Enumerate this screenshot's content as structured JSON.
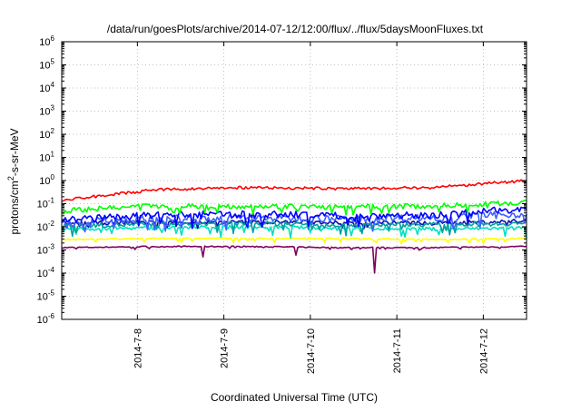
{
  "chart_data": {
    "type": "line",
    "title": "/data/run/goesPlots/archive/2014-07-12/12:00/flux/../flux/5daysMoonFluxes.txt",
    "xlabel": "Coordinated Universal Time (UTC)",
    "ylabel_parts": [
      "protons/cm",
      "2",
      "-s-sr-MeV"
    ],
    "y_scale": "log",
    "ylim_exponents": [
      -6,
      6
    ],
    "y_ticks": [
      {
        "base": "10",
        "exp": "-6"
      },
      {
        "base": "10",
        "exp": "-5"
      },
      {
        "base": "10",
        "exp": "-4"
      },
      {
        "base": "10",
        "exp": "-3"
      },
      {
        "base": "10",
        "exp": "-2"
      },
      {
        "base": "10",
        "exp": "-1"
      },
      {
        "base": "10",
        "exp": "0"
      },
      {
        "base": "10",
        "exp": "1"
      },
      {
        "base": "10",
        "exp": "2"
      },
      {
        "base": "10",
        "exp": "3"
      },
      {
        "base": "10",
        "exp": "4"
      },
      {
        "base": "10",
        "exp": "5"
      },
      {
        "base": "10",
        "exp": "6"
      }
    ],
    "x_domain": [
      "2014-07-07T03:00",
      "2014-07-12T12:00"
    ],
    "x_ticks": [
      {
        "label": "2014-7-8",
        "date": "2014-07-08"
      },
      {
        "label": "2014-7-9",
        "date": "2014-07-09"
      },
      {
        "label": "2014-7-10",
        "date": "2014-07-10"
      },
      {
        "label": "2014-7-11",
        "date": "2014-07-11"
      },
      {
        "label": "2014-7-12",
        "date": "2014-07-12"
      }
    ],
    "grid": true,
    "legend": "none",
    "series": [
      {
        "color": "#ff0000",
        "level": 0.45,
        "jitter": 0.12,
        "spikes": 0.0,
        "trend": [
          -0.85,
          -0.4,
          -0.3,
          -0.35,
          -0.3,
          0.0
        ]
      },
      {
        "color": "#00ff00",
        "level": 0.06,
        "jitter": 0.22,
        "spikes": 0.4,
        "trend": [
          -1.3,
          -1.1,
          -1.1,
          -1.15,
          -1.1,
          -0.95
        ]
      },
      {
        "color": "#0000ff",
        "level": 0.03,
        "jitter": 0.3,
        "spikes": 0.5,
        "trend": [
          -1.7,
          -1.5,
          -1.45,
          -1.5,
          -1.5,
          -1.2
        ]
      },
      {
        "color": "#4060ff",
        "level": 0.02,
        "jitter": 0.3,
        "spikes": 0.5,
        "trend": [
          -1.8,
          -1.65,
          -1.6,
          -1.65,
          -1.6,
          -1.45
        ]
      },
      {
        "color": "#00a0a0",
        "level": 0.012,
        "jitter": 0.2,
        "spikes": 0.5,
        "trend": [
          -1.95,
          -1.9,
          -1.85,
          -1.9,
          -1.9,
          -1.85
        ]
      },
      {
        "color": "#1010b0",
        "level": 0.015,
        "jitter": 0.18,
        "spikes": 0.3,
        "trend": [
          -1.85,
          -1.8,
          -1.8,
          -1.8,
          -1.85,
          -1.75
        ]
      },
      {
        "color": "#00e0c0",
        "level": 0.008,
        "jitter": 0.15,
        "spikes": 0.4,
        "trend": [
          -2.1,
          -2.05,
          -2.0,
          -2.05,
          -2.1,
          -2.05
        ]
      },
      {
        "color": "#ffff00",
        "level": 0.003,
        "jitter": 0.05,
        "spikes": 0.2,
        "trend": [
          -2.55,
          -2.5,
          -2.5,
          -2.5,
          -2.55,
          -2.5
        ]
      },
      {
        "color": "#800060",
        "level": 0.0013,
        "jitter": 0.05,
        "spikes": 0.1,
        "trend": [
          -2.9,
          -2.85,
          -2.85,
          -2.9,
          -2.9,
          -2.85
        ],
        "dips": [
          {
            "date": "2014-07-10T18:00",
            "value": 0.0001
          },
          {
            "date": "2014-07-08T18:00",
            "value": 0.0005
          },
          {
            "date": "2014-07-09T20:00",
            "value": 0.0006
          }
        ]
      }
    ]
  }
}
